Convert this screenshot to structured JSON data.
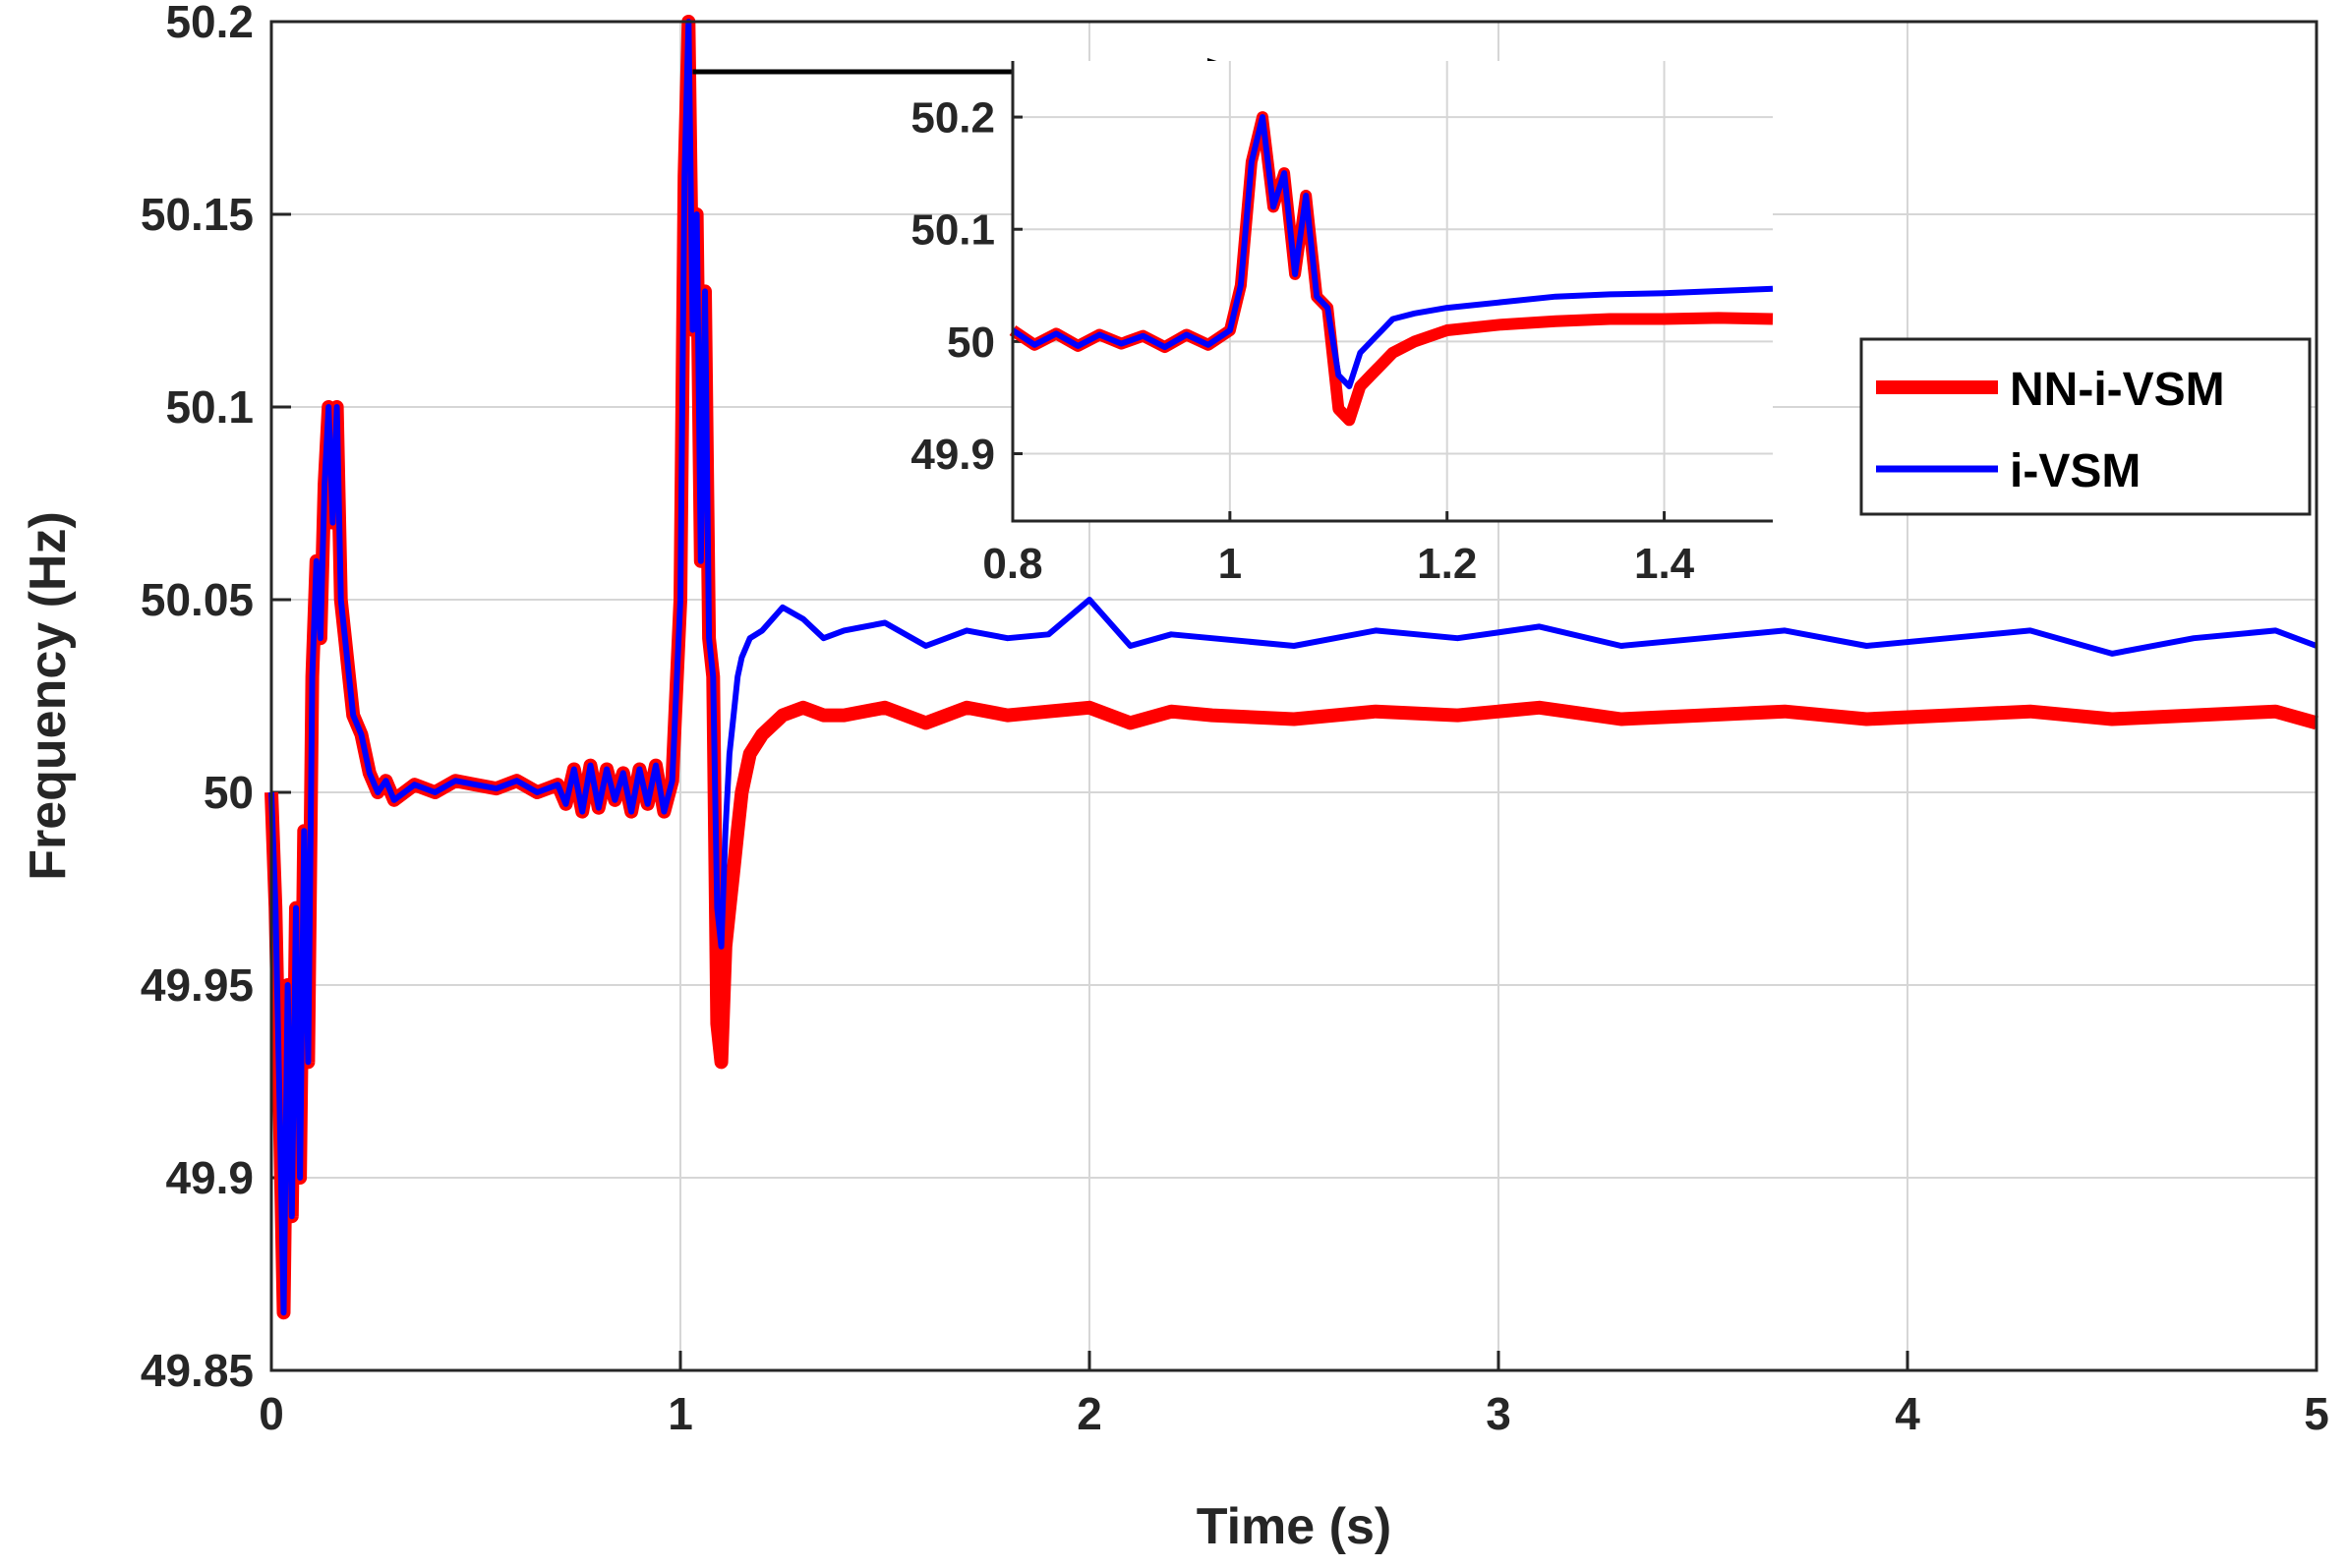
{
  "chart_data": [
    {
      "type": "line",
      "title": "",
      "xlabel": "Time (s)",
      "ylabel": "Frequency (Hz)",
      "xlim": [
        0,
        5
      ],
      "ylim": [
        49.85,
        50.2
      ],
      "xticks": [
        0,
        1,
        2,
        3,
        4,
        5
      ],
      "xtick_labels": [
        "0",
        "1",
        "2",
        "3",
        "4",
        "5"
      ],
      "yticks": [
        49.85,
        49.9,
        49.95,
        50,
        50.05,
        50.1,
        50.15,
        50.2
      ],
      "ytick_labels": [
        "49.85",
        "49.9",
        "49.95",
        "50",
        "50.05",
        "50.1",
        "50.15",
        "50.2"
      ],
      "grid": true,
      "legend_position": "right",
      "series": [
        {
          "name": "NN-i-VSM",
          "color": "#ff0000",
          "x": [
            0,
            0.01,
            0.02,
            0.03,
            0.04,
            0.05,
            0.06,
            0.07,
            0.08,
            0.09,
            0.1,
            0.11,
            0.12,
            0.13,
            0.14,
            0.15,
            0.16,
            0.17,
            0.18,
            0.19,
            0.2,
            0.22,
            0.24,
            0.26,
            0.28,
            0.3,
            0.35,
            0.4,
            0.45,
            0.5,
            0.55,
            0.6,
            0.65,
            0.7,
            0.72,
            0.74,
            0.76,
            0.78,
            0.8,
            0.82,
            0.84,
            0.86,
            0.88,
            0.9,
            0.92,
            0.94,
            0.96,
            0.98,
            1.0,
            1.01,
            1.02,
            1.03,
            1.04,
            1.05,
            1.06,
            1.07,
            1.08,
            1.09,
            1.1,
            1.11,
            1.12,
            1.13,
            1.14,
            1.15,
            1.17,
            1.2,
            1.25,
            1.3,
            1.35,
            1.4,
            1.5,
            1.6,
            1.7,
            1.8,
            1.9,
            2.0,
            2.1,
            2.2,
            2.3,
            2.5,
            2.7,
            2.9,
            3.1,
            3.3,
            3.5,
            3.7,
            3.9,
            4.1,
            4.3,
            4.5,
            4.7,
            4.9,
            5.0
          ],
          "y": [
            50.0,
            49.97,
            49.92,
            49.865,
            49.95,
            49.89,
            49.97,
            49.9,
            49.99,
            49.93,
            50.03,
            50.06,
            50.04,
            50.08,
            50.1,
            50.07,
            50.1,
            50.05,
            50.04,
            50.03,
            50.02,
            50.015,
            50.005,
            50.0,
            50.003,
            49.998,
            50.002,
            50.0,
            50.003,
            50.002,
            50.001,
            50.003,
            50.0,
            50.002,
            49.997,
            50.006,
            49.995,
            50.007,
            49.996,
            50.006,
            49.998,
            50.005,
            49.995,
            50.006,
            49.997,
            50.007,
            49.995,
            50.003,
            50.05,
            50.16,
            50.2,
            50.12,
            50.15,
            50.06,
            50.13,
            50.04,
            50.03,
            49.94,
            49.93,
            49.96,
            49.97,
            49.98,
            49.99,
            50.0,
            50.01,
            50.015,
            50.02,
            50.022,
            50.02,
            50.02,
            50.022,
            50.018,
            50.022,
            50.02,
            50.021,
            50.022,
            50.018,
            50.021,
            50.02,
            50.019,
            50.021,
            50.02,
            50.022,
            50.019,
            50.02,
            50.021,
            50.019,
            50.02,
            50.021,
            50.019,
            50.02,
            50.021,
            50.018
          ]
        },
        {
          "name": "i-VSM",
          "color": "#0000ff",
          "x": [
            0,
            0.01,
            0.02,
            0.03,
            0.04,
            0.05,
            0.06,
            0.07,
            0.08,
            0.09,
            0.1,
            0.11,
            0.12,
            0.13,
            0.14,
            0.15,
            0.16,
            0.17,
            0.18,
            0.19,
            0.2,
            0.22,
            0.24,
            0.26,
            0.28,
            0.3,
            0.35,
            0.4,
            0.45,
            0.5,
            0.55,
            0.6,
            0.65,
            0.7,
            0.72,
            0.74,
            0.76,
            0.78,
            0.8,
            0.82,
            0.84,
            0.86,
            0.88,
            0.9,
            0.92,
            0.94,
            0.96,
            0.98,
            1.0,
            1.01,
            1.02,
            1.03,
            1.04,
            1.05,
            1.06,
            1.07,
            1.08,
            1.09,
            1.1,
            1.11,
            1.12,
            1.13,
            1.14,
            1.15,
            1.17,
            1.2,
            1.25,
            1.3,
            1.35,
            1.4,
            1.5,
            1.6,
            1.7,
            1.8,
            1.9,
            2.0,
            2.1,
            2.2,
            2.3,
            2.5,
            2.7,
            2.9,
            3.1,
            3.3,
            3.5,
            3.7,
            3.9,
            4.1,
            4.3,
            4.5,
            4.7,
            4.9,
            5.0
          ],
          "y": [
            50.0,
            49.97,
            49.92,
            49.865,
            49.95,
            49.89,
            49.97,
            49.9,
            49.99,
            49.93,
            50.03,
            50.06,
            50.04,
            50.08,
            50.1,
            50.07,
            50.1,
            50.05,
            50.04,
            50.03,
            50.02,
            50.015,
            50.005,
            50.0,
            50.003,
            49.998,
            50.002,
            50.0,
            50.003,
            50.002,
            50.001,
            50.003,
            50.0,
            50.002,
            49.997,
            50.006,
            49.995,
            50.007,
            49.996,
            50.006,
            49.998,
            50.005,
            49.995,
            50.006,
            49.997,
            50.007,
            49.995,
            50.003,
            50.05,
            50.16,
            50.2,
            50.12,
            50.15,
            50.06,
            50.13,
            50.04,
            50.03,
            49.97,
            49.96,
            49.99,
            50.01,
            50.02,
            50.03,
            50.035,
            50.04,
            50.042,
            50.048,
            50.045,
            50.04,
            50.042,
            50.044,
            50.038,
            50.042,
            50.04,
            50.041,
            50.05,
            50.038,
            50.041,
            50.04,
            50.038,
            50.042,
            50.04,
            50.043,
            50.038,
            50.04,
            50.042,
            50.038,
            50.04,
            50.042,
            50.036,
            50.04,
            50.042,
            50.038
          ]
        }
      ],
      "arrow": {
        "from": [
          1.03,
          50.187
        ],
        "to": "inset peak"
      }
    },
    {
      "type": "line",
      "title": "",
      "xlabel": "",
      "ylabel": "",
      "xlim": [
        0.8,
        1.5
      ],
      "ylim": [
        49.84,
        50.25
      ],
      "xticks": [
        0.8,
        1.0,
        1.2,
        1.4
      ],
      "xtick_labels": [
        "0.8",
        "1",
        "1.2",
        "1.4"
      ],
      "yticks": [
        49.9,
        50.0,
        50.1,
        50.2
      ],
      "ytick_labels": [
        "49.9",
        "50",
        "50.1",
        "50.2"
      ],
      "grid": true,
      "series": [
        {
          "name": "NN-i-VSM",
          "color": "#ff0000",
          "x": [
            0.8,
            0.82,
            0.84,
            0.86,
            0.88,
            0.9,
            0.92,
            0.94,
            0.96,
            0.98,
            1.0,
            1.01,
            1.02,
            1.03,
            1.04,
            1.05,
            1.06,
            1.07,
            1.08,
            1.09,
            1.1,
            1.11,
            1.12,
            1.13,
            1.14,
            1.15,
            1.17,
            1.2,
            1.25,
            1.3,
            1.35,
            1.4,
            1.45,
            1.5
          ],
          "y": [
            50.01,
            49.997,
            50.007,
            49.996,
            50.006,
            49.998,
            50.005,
            49.995,
            50.006,
            49.997,
            50.01,
            50.05,
            50.16,
            50.2,
            50.12,
            50.15,
            50.06,
            50.13,
            50.04,
            50.03,
            49.94,
            49.93,
            49.96,
            49.97,
            49.98,
            49.99,
            50.0,
            50.01,
            50.015,
            50.018,
            50.02,
            50.02,
            50.021,
            50.02
          ]
        },
        {
          "name": "i-VSM",
          "color": "#0000ff",
          "x": [
            0.8,
            0.82,
            0.84,
            0.86,
            0.88,
            0.9,
            0.92,
            0.94,
            0.96,
            0.98,
            1.0,
            1.01,
            1.02,
            1.03,
            1.04,
            1.05,
            1.06,
            1.07,
            1.08,
            1.09,
            1.1,
            1.11,
            1.12,
            1.13,
            1.14,
            1.15,
            1.17,
            1.2,
            1.25,
            1.3,
            1.35,
            1.4,
            1.45,
            1.5
          ],
          "y": [
            50.01,
            49.997,
            50.007,
            49.996,
            50.006,
            49.998,
            50.005,
            49.995,
            50.006,
            49.997,
            50.01,
            50.05,
            50.16,
            50.2,
            50.12,
            50.15,
            50.06,
            50.13,
            50.04,
            50.03,
            49.97,
            49.96,
            49.99,
            50.0,
            50.01,
            50.02,
            50.025,
            50.03,
            50.035,
            50.04,
            50.042,
            50.043,
            50.045,
            50.047
          ]
        }
      ]
    }
  ],
  "legend": {
    "items": [
      {
        "label": "NN-i-VSM",
        "color": "#ff0000"
      },
      {
        "label": "i-VSM",
        "color": "#0000ff"
      }
    ]
  }
}
